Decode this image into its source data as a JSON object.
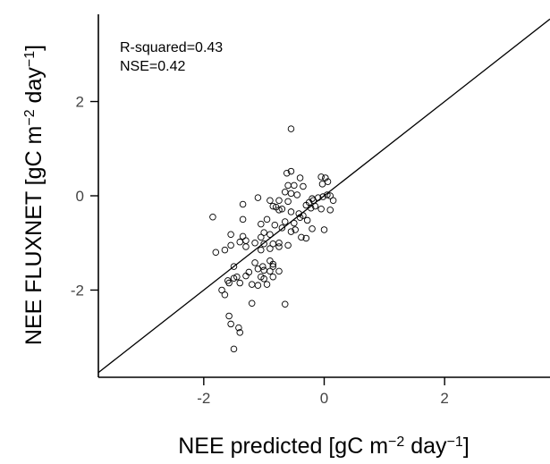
{
  "chart_data": {
    "type": "scatter",
    "title": "",
    "xlabel": {
      "parts": [
        {
          "text": "NEE predicted [gC  m",
          "sup": false
        },
        {
          "text": "−2",
          "sup": true
        },
        {
          "text": "  day",
          "sup": false
        },
        {
          "text": "−1",
          "sup": true
        },
        {
          "text": "]",
          "sup": false
        }
      ]
    },
    "ylabel": {
      "parts": [
        {
          "text": "NEE FLUXNET [gC  m",
          "sup": false
        },
        {
          "text": "−2",
          "sup": true
        },
        {
          "text": "  day",
          "sup": false
        },
        {
          "text": "−1",
          "sup": true
        },
        {
          "text": "]",
          "sup": false
        }
      ]
    },
    "xlim": [
      -3.75,
      3.75
    ],
    "ylim": [
      -3.85,
      3.85
    ],
    "xticks": [
      -2,
      0,
      2
    ],
    "yticks": [
      -2,
      0,
      2
    ],
    "xtick_labels": [
      "-2",
      "0",
      "2"
    ],
    "ytick_labels": [
      "-2",
      "0",
      "2"
    ],
    "annotations": [
      "R-squared=0.43",
      "NSE=0.42"
    ],
    "reference_line": {
      "type": "1:1",
      "slope": 1,
      "intercept": 0
    },
    "grid": false,
    "points": [
      [
        -0.55,
        1.42
      ],
      [
        -0.55,
        0.52
      ],
      [
        -0.62,
        0.48
      ],
      [
        -0.4,
        0.38
      ],
      [
        -0.05,
        0.4
      ],
      [
        0.02,
        0.38
      ],
      [
        0.06,
        0.3
      ],
      [
        -0.03,
        0.25
      ],
      [
        -0.6,
        0.22
      ],
      [
        -0.5,
        0.22
      ],
      [
        -0.35,
        0.2
      ],
      [
        -0.65,
        0.08
      ],
      [
        -0.55,
        0.05
      ],
      [
        -0.45,
        0.02
      ],
      [
        0.05,
        0.02
      ],
      [
        0.1,
        0.0
      ],
      [
        -0.02,
        -0.02
      ],
      [
        -0.1,
        -0.04
      ],
      [
        -0.2,
        -0.06
      ],
      [
        -1.1,
        -0.04
      ],
      [
        -0.9,
        -0.1
      ],
      [
        -0.75,
        -0.1
      ],
      [
        -0.6,
        -0.12
      ],
      [
        -0.18,
        -0.1
      ],
      [
        -0.25,
        -0.14
      ],
      [
        0.15,
        -0.1
      ],
      [
        -1.35,
        -0.18
      ],
      [
        -0.3,
        -0.2
      ],
      [
        -0.15,
        -0.22
      ],
      [
        -0.22,
        -0.26
      ],
      [
        0.1,
        -0.3
      ],
      [
        -0.05,
        -0.28
      ],
      [
        -0.85,
        -0.22
      ],
      [
        -0.8,
        -0.24
      ],
      [
        -0.75,
        -0.3
      ],
      [
        -0.7,
        -0.28
      ],
      [
        -0.55,
        -0.34
      ],
      [
        -0.42,
        -0.38
      ],
      [
        -0.35,
        -0.42
      ],
      [
        -0.4,
        -0.46
      ],
      [
        -0.28,
        -0.52
      ],
      [
        -1.35,
        -0.5
      ],
      [
        -0.95,
        -0.5
      ],
      [
        -0.65,
        -0.55
      ],
      [
        -0.5,
        -0.58
      ],
      [
        -1.85,
        -0.45
      ],
      [
        -1.05,
        -0.6
      ],
      [
        -0.82,
        -0.62
      ],
      [
        -0.7,
        -0.68
      ],
      [
        -0.48,
        -0.72
      ],
      [
        -0.55,
        -0.76
      ],
      [
        -0.2,
        -0.7
      ],
      [
        0.0,
        -0.72
      ],
      [
        -1.0,
        -0.78
      ],
      [
        -0.9,
        -0.82
      ],
      [
        -1.55,
        -0.82
      ],
      [
        -1.35,
        -0.86
      ],
      [
        -1.05,
        -0.88
      ],
      [
        -0.38,
        -0.88
      ],
      [
        -0.3,
        -0.9
      ],
      [
        -1.3,
        -0.95
      ],
      [
        -1.4,
        -0.98
      ],
      [
        -1.15,
        -1.0
      ],
      [
        -1.0,
        -1.02
      ],
      [
        -0.85,
        -1.02
      ],
      [
        -0.75,
        -1.0
      ],
      [
        -0.6,
        -1.05
      ],
      [
        -0.75,
        -1.08
      ],
      [
        -1.55,
        -1.05
      ],
      [
        -1.3,
        -1.08
      ],
      [
        -1.65,
        -1.15
      ],
      [
        -0.9,
        -1.12
      ],
      [
        -1.05,
        -1.15
      ],
      [
        -1.8,
        -1.2
      ],
      [
        -1.15,
        -1.42
      ],
      [
        -0.9,
        -1.38
      ],
      [
        -0.85,
        -1.45
      ],
      [
        -1.5,
        -1.5
      ],
      [
        -1.02,
        -1.5
      ],
      [
        -0.85,
        -1.5
      ],
      [
        -1.1,
        -1.55
      ],
      [
        -1.0,
        -1.58
      ],
      [
        -0.9,
        -1.6
      ],
      [
        -0.75,
        -1.6
      ],
      [
        -1.25,
        -1.62
      ],
      [
        -1.3,
        -1.7
      ],
      [
        -1.05,
        -1.72
      ],
      [
        -1.0,
        -1.76
      ],
      [
        -0.85,
        -1.72
      ],
      [
        -1.45,
        -1.72
      ],
      [
        -1.5,
        -1.75
      ],
      [
        -1.6,
        -1.8
      ],
      [
        -1.58,
        -1.85
      ],
      [
        -1.4,
        -1.85
      ],
      [
        -1.2,
        -1.88
      ],
      [
        -1.1,
        -1.9
      ],
      [
        -0.95,
        -1.88
      ],
      [
        -1.7,
        -2.0
      ],
      [
        -1.65,
        -2.1
      ],
      [
        -1.2,
        -2.28
      ],
      [
        -0.65,
        -2.3
      ],
      [
        -1.58,
        -2.55
      ],
      [
        -1.55,
        -2.72
      ],
      [
        -1.42,
        -2.8
      ],
      [
        -1.4,
        -2.9
      ],
      [
        -1.5,
        -3.25
      ]
    ]
  }
}
